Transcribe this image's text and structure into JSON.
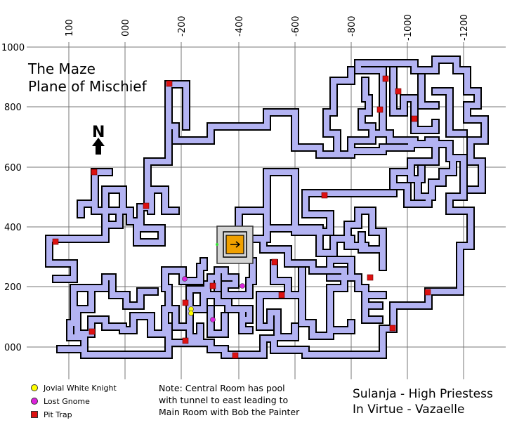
{
  "title": {
    "line1": "The Maze",
    "line2": "Plane of Mischief"
  },
  "compass": {
    "label": "N",
    "icon": "north-arrow-icon"
  },
  "x_ticks": [
    "100",
    "000",
    "-200",
    "-400",
    "-600",
    "-800",
    "-1000",
    "-1200"
  ],
  "y_ticks": [
    "1000",
    "800",
    "600",
    "400",
    "200",
    "000"
  ],
  "legend": [
    {
      "label": "Jovial White Knight",
      "color": "#ffff00",
      "shape": "circle"
    },
    {
      "label": "Lost Gnome",
      "color": "#dd22dd",
      "shape": "circle"
    },
    {
      "label": "Pit Trap",
      "color": "#dd1111",
      "shape": "square"
    }
  ],
  "note": {
    "line1": "Note: Central Room has pool",
    "line2": "with tunnel to east leading to",
    "line3": "Main Room with Bob the Painter"
  },
  "credit": {
    "line1": "Sulanja - High Priestess",
    "line2": "In Virtue - Vazaelle"
  },
  "colors": {
    "corridor": "#b3b3f2",
    "wall": "#000000",
    "grid": "#777777",
    "room": "#d4d4d4",
    "pool": "#f0a000"
  }
}
